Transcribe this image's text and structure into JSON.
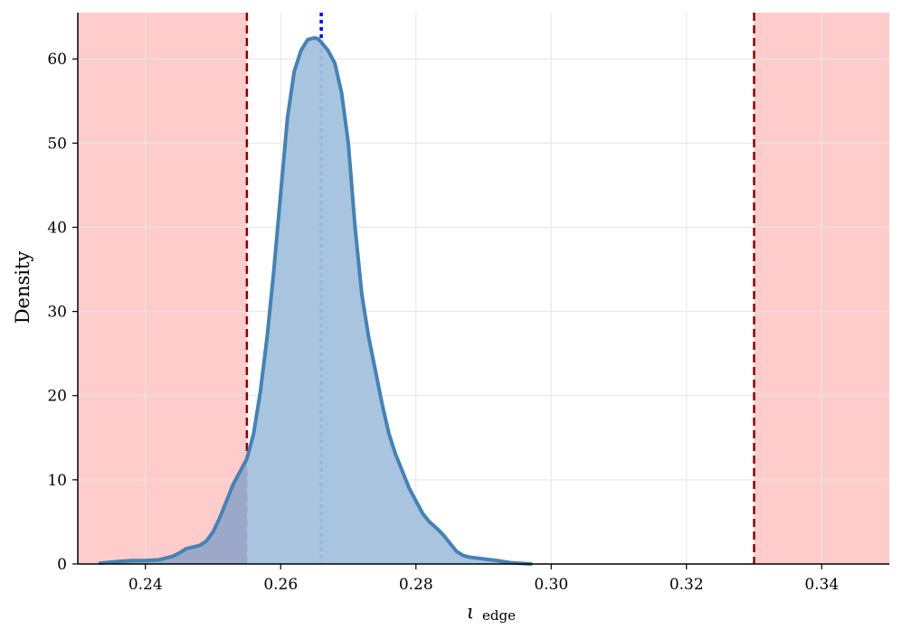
{
  "chart_data": {
    "type": "area",
    "xlabel": "ι",
    "xlabel_subscript": "edge",
    "ylabel": "Density",
    "xlim": [
      0.23,
      0.35
    ],
    "ylim": [
      0,
      65.5
    ],
    "grid": true,
    "x_ticks": [
      0.24,
      0.26,
      0.28,
      0.3,
      0.32,
      0.34
    ],
    "x_tick_labels": [
      "0.24",
      "0.26",
      "0.28",
      "0.30",
      "0.32",
      "0.34"
    ],
    "y_ticks": [
      0,
      10,
      20,
      30,
      40,
      50,
      60
    ],
    "y_tick_labels": [
      "0",
      "10",
      "20",
      "30",
      "40",
      "50",
      "60"
    ],
    "shaded_regions": [
      {
        "x0": 0.23,
        "x1": 0.255
      },
      {
        "x0": 0.33,
        "x1": 0.35
      }
    ],
    "reference_lines": [
      {
        "x": 0.255,
        "style": "dashed"
      },
      {
        "x": 0.266,
        "style": "dotted"
      },
      {
        "x": 0.33,
        "style": "dashed"
      }
    ],
    "series": [
      {
        "x": [
          0.2333,
          0.236,
          0.238,
          0.24,
          0.242,
          0.244,
          0.245,
          0.246,
          0.247,
          0.248,
          0.249,
          0.25,
          0.251,
          0.252,
          0.253,
          0.254,
          0.255,
          0.256,
          0.257,
          0.258,
          0.259,
          0.26,
          0.261,
          0.262,
          0.263,
          0.264,
          0.265,
          0.2655,
          0.266,
          0.267,
          0.268,
          0.269,
          0.27,
          0.271,
          0.272,
          0.273,
          0.274,
          0.275,
          0.276,
          0.277,
          0.278,
          0.279,
          0.28,
          0.281,
          0.282,
          0.283,
          0.284,
          0.285,
          0.286,
          0.287,
          0.288,
          0.29,
          0.292,
          0.294,
          0.297
        ],
        "y": [
          0.1,
          0.3,
          0.4,
          0.4,
          0.5,
          0.9,
          1.3,
          1.8,
          2.0,
          2.2,
          2.7,
          3.8,
          5.5,
          7.5,
          9.5,
          11.0,
          12.5,
          15.5,
          20.5,
          27.0,
          35.0,
          44.0,
          53.0,
          58.5,
          61.0,
          62.3,
          62.5,
          62.4,
          62.0,
          61.0,
          59.5,
          56.0,
          50.0,
          40.0,
          32.0,
          27.0,
          23.0,
          19.0,
          15.5,
          13.0,
          11.0,
          9.0,
          7.5,
          6.0,
          5.0,
          4.3,
          3.5,
          2.5,
          1.5,
          1.0,
          0.8,
          0.6,
          0.4,
          0.15,
          0.0
        ]
      }
    ]
  },
  "colors": {
    "band_fill": "#ffcccc",
    "bound_line": "#8b0000",
    "marker_line": "#0000ff",
    "curve_stroke": "#4682b4",
    "curve_fill": "#a3c1dd",
    "grid": "#e6e6e6",
    "axis": "#000000"
  }
}
